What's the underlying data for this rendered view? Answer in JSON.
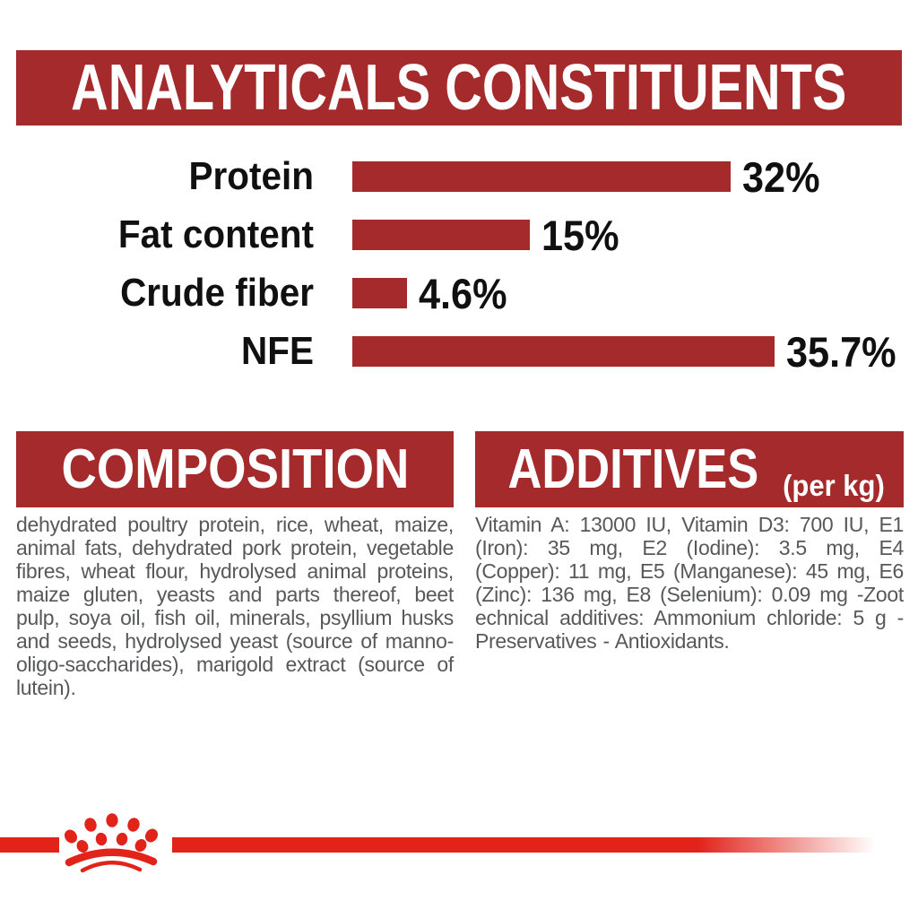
{
  "colors": {
    "banner_red": "#a42a2c",
    "bright_red": "#e2231a",
    "body_gray": "#57585a",
    "label_black": "#101010",
    "white": "#ffffff"
  },
  "header": {
    "title": "ANALYTICALS CONSTITUENTS"
  },
  "chart_data": {
    "type": "bar",
    "orientation": "horizontal",
    "title": "ANALYTICALS CONSTITUENTS",
    "categories": [
      "Protein",
      "Fat content",
      "Crude fiber",
      "NFE"
    ],
    "values": [
      32,
      15,
      4.6,
      35.7
    ],
    "value_labels": [
      "32%",
      "15%",
      "4.6%",
      "35.7%"
    ],
    "unit": "%",
    "xlim": [
      0,
      35.7
    ],
    "bar_color": "#a42a2c",
    "grid": false,
    "legend": false
  },
  "composition": {
    "heading": "COMPOSITION",
    "body": "dehydrated poultry protein, rice, wheat, maize, animal fats, dehydrated pork protein, vegetable fibres, wheat flour, hydrolysed animal proteins, maize gluten, yeasts and parts thereof, beet pulp, soya oil, fish oil, minerals, psyllium husks and seeds, hydrolysed yeast (source of manno-oligo-saccharides), marigold extract (source of lutein)."
  },
  "additives": {
    "heading": "ADDITIVES",
    "heading_suffix": "(per kg)",
    "body": "Vitamin A: 13000 IU, Vitamin D3: 700 IU, E1 (Iron): 35 mg, E2 (Iodine): 3.5 mg, E4 (Copper): 11 mg, E5 (Manganese): 45 mg, E6 (Zinc): 136 mg, E8 (Selenium): 0.09 mg -Zoot echnical additives: Ammonium chloride: 5 g - Preservatives - Antioxidants."
  },
  "footer": {
    "logo": "royal-canin-crown-icon"
  }
}
